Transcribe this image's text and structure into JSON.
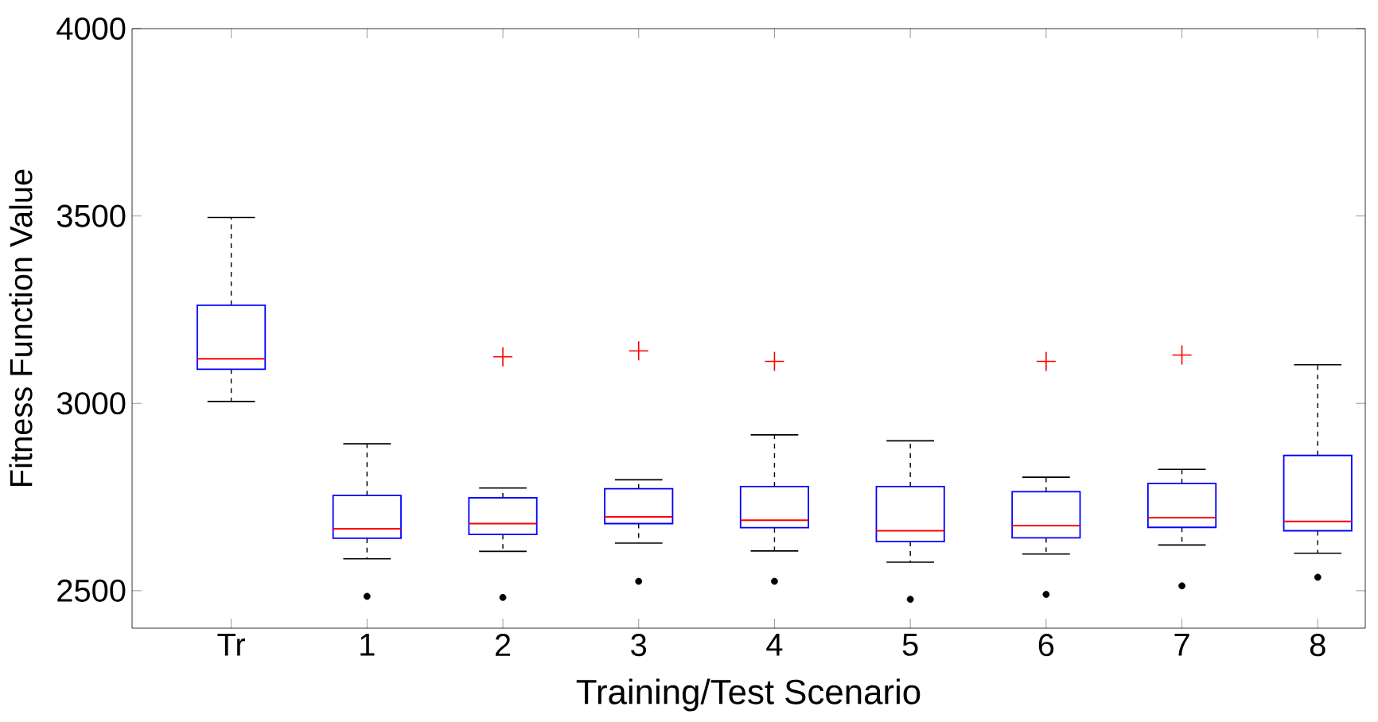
{
  "chart_data": {
    "type": "box",
    "xlabel": "Training/Test Scenario",
    "ylabel": "Fitness Function Value",
    "categories": [
      "Tr",
      "1",
      "2",
      "3",
      "4",
      "5",
      "6",
      "7",
      "8"
    ],
    "ylim": [
      2400,
      4000
    ],
    "yticks": [
      2500,
      3000,
      3500,
      4000
    ],
    "series": [
      {
        "type": "box",
        "color": "#0000ff",
        "boxes": [
          {
            "low": 3005,
            "q1": 3091,
            "median": 3119,
            "q3": 3262,
            "high": 3496
          },
          {
            "low": 2585,
            "q1": 2640,
            "median": 2665,
            "q3": 2754,
            "high": 2892
          },
          {
            "low": 2605,
            "q1": 2650,
            "median": 2679,
            "q3": 2748,
            "high": 2774,
            "outliers": [
              3124
            ]
          },
          {
            "low": 2627,
            "q1": 2679,
            "median": 2697,
            "q3": 2772,
            "high": 2796,
            "outliers": [
              3140
            ]
          },
          {
            "low": 2606,
            "q1": 2668,
            "median": 2688,
            "q3": 2778,
            "high": 2916,
            "outliers": [
              3112
            ]
          },
          {
            "low": 2576,
            "q1": 2631,
            "median": 2660,
            "q3": 2778,
            "high": 2900
          },
          {
            "low": 2598,
            "q1": 2641,
            "median": 2674,
            "q3": 2764,
            "high": 2803,
            "outliers": [
              3112
            ]
          },
          {
            "low": 2622,
            "q1": 2669,
            "median": 2695,
            "q3": 2786,
            "high": 2824,
            "outliers": [
              3129
            ]
          },
          {
            "low": 2600,
            "q1": 2660,
            "median": 2685,
            "q3": 2861,
            "high": 3103
          }
        ]
      },
      {
        "type": "scatter",
        "color": "#000000",
        "x": [
          "1",
          "2",
          "3",
          "4",
          "5",
          "6",
          "7",
          "8"
        ],
        "values": [
          2485,
          2482,
          2525,
          2525,
          2477,
          2490,
          2513,
          2536
        ]
      }
    ]
  }
}
